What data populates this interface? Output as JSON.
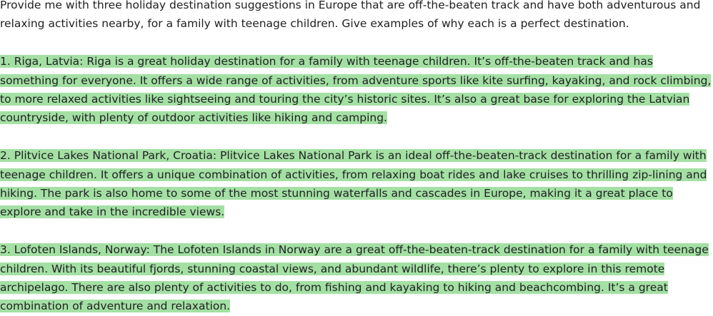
{
  "prompt": {
    "text": "Provide me with three holiday destination suggestions in Europe that are off-the-beaten track and have both adventurous and relaxing activities nearby, for a family with teenage children. Give examples of why each is a perfect destination."
  },
  "completion": {
    "highlight_color": "#a4e0a4",
    "items": [
      {
        "text": "1. Riga, Latvia: Riga is a great holiday destination for a family with teenage children. It’s off-the-beaten track and has something for everyone. It offers a wide range of activities, from adventure sports like kite surfing, kayaking, and rock climbing, to more relaxed activities like sightseeing and touring the city’s historic sites. It’s also a great base for exploring the Latvian countryside, with plenty of outdoor activities like hiking and camping. "
      },
      {
        "text": "2. Plitvice Lakes National Park, Croatia: Plitvice Lakes National Park is an ideal off-the-beaten-track destination for a family with teenage children. It offers a unique combination of activities, from relaxing boat rides and lake cruises to thrilling zip-lining and hiking. The park is also home to some of the most stunning waterfalls and cascades in Europe, making it a great place to explore and take in the incredible views. "
      },
      {
        "text": "3. Lofoten Islands, Norway: The Lofoten Islands in Norway are a great off-the-beaten-track destination for a family with teenage children. With its beautiful fjords, stunning coastal views, and abundant wildlife, there’s plenty to explore in this remote archipelago. There are also plenty of activities to do, from fishing and kayaking to hiking and beachcombing. It’s a great combination of adventure and relaxation."
      }
    ]
  }
}
